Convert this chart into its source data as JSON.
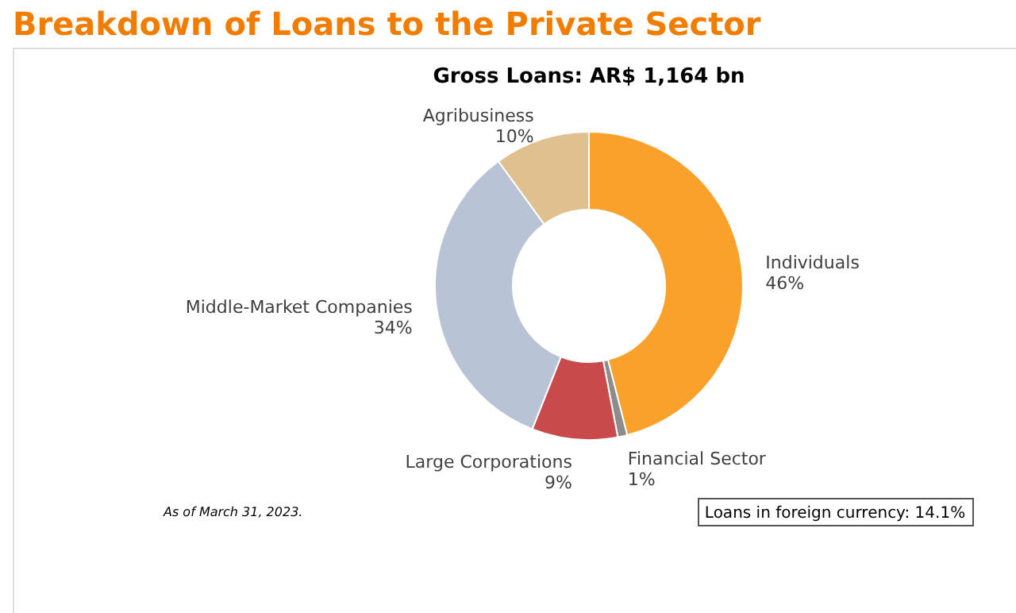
{
  "chart_data": {
    "type": "donut",
    "title": "Breakdown of Loans to the Private Sector",
    "subtitle": "Gross Loans: AR$ 1,164 bn",
    "categories": [
      "Individuals",
      "Financial Sector",
      "Large Corporations",
      "Middle-Market Companies",
      "Agribusiness"
    ],
    "values": [
      46,
      1,
      9,
      34,
      10
    ],
    "value_labels": [
      "46%",
      "1%",
      "9%",
      "34%",
      "10%"
    ],
    "colors": [
      "#f9a12a",
      "#8c8c8c",
      "#c94a4a",
      "#b8c3d5",
      "#dfc08e"
    ],
    "annotations": [
      "As of March 31, 2023.",
      "Loans in foreign currency: 14.1%"
    ],
    "legend": false
  }
}
